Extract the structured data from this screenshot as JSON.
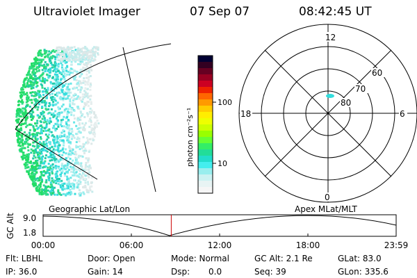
{
  "header": {
    "instrument": "Ultraviolet Imager",
    "date": "07 Sep 07",
    "time": "08:42:45 UT"
  },
  "colorbar": {
    "label": "photon cm⁻²s⁻¹",
    "ticks": [
      {
        "label": "100",
        "value": 100
      },
      {
        "label": "10",
        "value": 10
      }
    ],
    "colors": [
      "#000033",
      "#330022",
      "#660022",
      "#990022",
      "#cc0022",
      "#ee2200",
      "#ff6600",
      "#ff9900",
      "#ffcc00",
      "#ffee00",
      "#eeff00",
      "#ccff00",
      "#99ff00",
      "#66ff33",
      "#33ee66",
      "#22dd99",
      "#22ddcc",
      "#44eeee",
      "#99eeee",
      "#ccf2f2",
      "#e8f4f4",
      "#f6f6f6"
    ]
  },
  "polar_plot": {
    "mlt_labels": {
      "top": "12",
      "left": "18",
      "right": "6",
      "bottom": "0"
    },
    "lat_labels": [
      "60",
      "70",
      "80"
    ]
  },
  "timeline": {
    "ylabel": "GC Alt",
    "y_ticks": [
      "9.0",
      "1.8"
    ],
    "left_title": "Geographic Lat/Lon",
    "right_title": "Apex MLat/MLT",
    "x_ticks": [
      "00:00",
      "06:00",
      "12:00",
      "18:00",
      "23:59"
    ],
    "current_time_hours": 8.71,
    "line_color": "#cc0000"
  },
  "info": {
    "flt": "Flt: LBHL",
    "ip": "IP: 36.0",
    "door": "Door: Open",
    "gain": "Gain: 14",
    "mode": "Mode: Normal",
    "dsp_label": "Dsp:",
    "dsp_value": "0.0",
    "gc_alt": "GC Alt: 2.1 Re",
    "seq": "Seq: 39",
    "glat": "GLat: 83.0",
    "glon": "GLon: 335.6"
  }
}
